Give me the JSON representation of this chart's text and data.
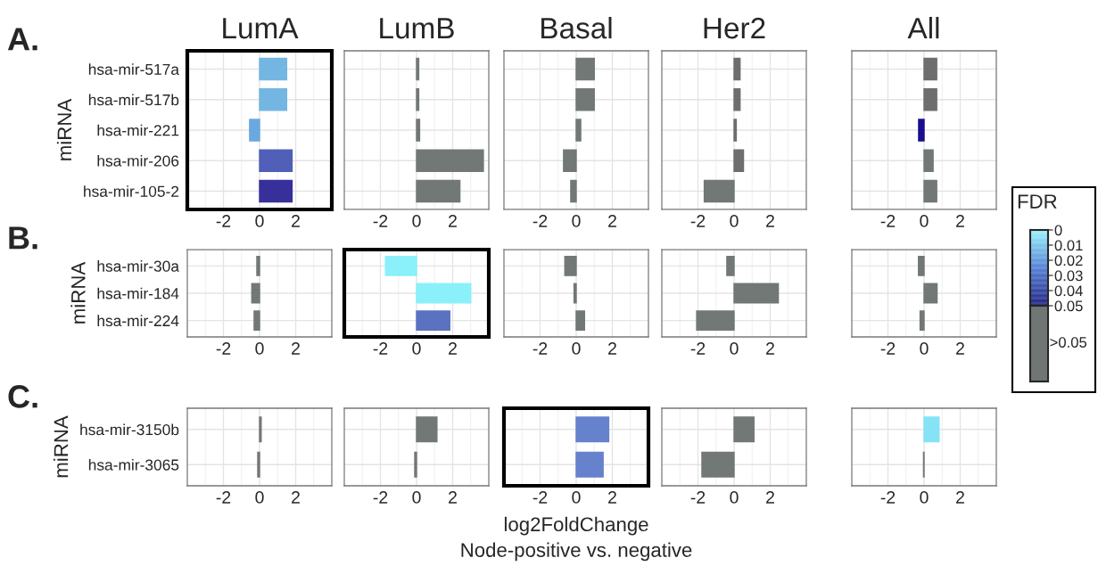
{
  "chart_data": [
    {
      "type": "bar",
      "orientation": "horizontal",
      "title": "LumA",
      "ylabel": "miRNA",
      "annotations": [
        "A.",
        ">0.05"
      ],
      "clabel": "FDR",
      "clim": [
        0,
        0.05
      ],
      "cticks": [
        0,
        0.01,
        0.02,
        0.03,
        0.04,
        0.05
      ],
      "categories": [
        "hsa-mir-517a",
        "hsa-mir-517b",
        "hsa-mir-221",
        "hsa-mir-206",
        "hsa-mir-105-2"
      ],
      "values": [
        1.5,
        1.5,
        -0.55,
        1.8,
        1.8
      ],
      "colors": [
        "#74b6e2",
        "#74b6e2",
        "#6aa8e0",
        "#5060b8",
        "#38309a"
      ],
      "xlim": [
        -4,
        4
      ],
      "xticks": [
        -2,
        0,
        2
      ],
      "grid": true
    },
    {
      "type": "bar",
      "orientation": "horizontal",
      "title": "LumB",
      "tick_labels": "x",
      "categories": [
        null,
        null,
        null,
        null,
        null
      ],
      "values": [
        0.12,
        0.12,
        0.17,
        3.7,
        2.4
      ],
      "colors": [
        "#727876",
        "#727876",
        "#727876",
        "#727876",
        "#727876"
      ],
      "xlim": [
        -4,
        4
      ],
      "xticks": [
        -2,
        0,
        2
      ],
      "grid": true
    },
    {
      "type": "bar",
      "orientation": "horizontal",
      "title": "Basal",
      "tick_labels": "x",
      "categories": [
        null,
        null,
        null,
        null,
        null
      ],
      "values": [
        1.0,
        1.0,
        0.25,
        -0.7,
        -0.3
      ],
      "colors": [
        "#727876",
        "#727876",
        "#727876",
        "#727876",
        "#727876"
      ],
      "xlim": [
        -4,
        4
      ],
      "xticks": [
        -2,
        0,
        2
      ],
      "grid": true
    },
    {
      "type": "bar",
      "orientation": "horizontal",
      "title": "Her2",
      "tick_labels": "x",
      "categories": [
        null,
        null,
        null,
        null,
        null
      ],
      "values": [
        0.33,
        0.33,
        0.12,
        0.52,
        -1.65
      ],
      "colors": [
        "#6e6e6e",
        "#6e6e6e",
        "#6e6e6e",
        "#6e6e6e",
        "#727876"
      ],
      "xlim": [
        -4,
        4
      ],
      "xticks": [
        -2,
        0,
        2
      ],
      "grid": true
    },
    {
      "type": "bar",
      "orientation": "horizontal",
      "title": "All",
      "tick_labels": "x",
      "categories": [
        null,
        null,
        null,
        null,
        null
      ],
      "values": [
        0.7,
        0.7,
        -0.3,
        0.5,
        0.7
      ],
      "colors": [
        "#6e6e6e",
        "#6e6e6e",
        "#1a0d8f",
        "#727876",
        "#727876"
      ],
      "xlim": [
        -4,
        4
      ],
      "xticks": [
        -2,
        0,
        2
      ],
      "grid": true
    },
    {
      "type": "bar",
      "orientation": "horizontal",
      "ylabel": "miRNA",
      "annotations": [
        "B."
      ],
      "categories": [
        "hsa-mir-30a",
        "hsa-mir-184",
        "hsa-mir-224"
      ],
      "values": [
        -0.15,
        -0.43,
        -0.3
      ],
      "colors": [
        "#727876",
        "#727876",
        "#727876"
      ],
      "xlim": [
        -4,
        4
      ],
      "xticks": [
        -2,
        0,
        2
      ],
      "grid": true
    },
    {
      "type": "bar",
      "orientation": "horizontal",
      "tick_labels": "x",
      "categories": [
        null,
        null,
        null
      ],
      "values": [
        -1.72,
        3.0,
        1.84
      ],
      "colors": [
        "#8af0fa",
        "#8af0fa",
        "#5a72c0"
      ],
      "xlim": [
        -4,
        4
      ],
      "xticks": [
        -2,
        0,
        2
      ],
      "grid": true
    },
    {
      "type": "bar",
      "orientation": "horizontal",
      "tick_labels": "x",
      "categories": [
        null,
        null,
        null
      ],
      "values": [
        -0.63,
        -0.12,
        0.46
      ],
      "colors": [
        "#727876",
        "#727876",
        "#727876"
      ],
      "xlim": [
        -4,
        4
      ],
      "xticks": [
        -2,
        0,
        2
      ],
      "grid": true
    },
    {
      "type": "bar",
      "orientation": "horizontal",
      "tick_labels": "x",
      "categories": [
        null,
        null,
        null
      ],
      "values": [
        -0.4,
        2.45,
        -2.07
      ],
      "colors": [
        "#727876",
        "#727876",
        "#727876"
      ],
      "xlim": [
        -4,
        4
      ],
      "xticks": [
        -2,
        0,
        2
      ],
      "grid": true
    },
    {
      "type": "bar",
      "orientation": "horizontal",
      "tick_labels": "x",
      "categories": [
        null,
        null,
        null
      ],
      "values": [
        -0.31,
        0.72,
        -0.22
      ],
      "colors": [
        "#727876",
        "#727876",
        "#727876"
      ],
      "xlim": [
        -4,
        4
      ],
      "xticks": [
        -2,
        0,
        2
      ],
      "grid": true
    },
    {
      "type": "bar",
      "orientation": "horizontal",
      "ylabel": "miRNA",
      "annotations": [
        "C."
      ],
      "categories": [
        "hsa-mir-3150b",
        "hsa-mir-3065"
      ],
      "values": [
        0.09,
        -0.1
      ],
      "colors": [
        "#727876",
        "#727876"
      ],
      "xlim": [
        -4,
        4
      ],
      "xticks": [
        -2,
        0,
        2
      ],
      "grid": true
    },
    {
      "type": "bar",
      "orientation": "horizontal",
      "tick_labels": "x",
      "categories": [
        null,
        null
      ],
      "values": [
        1.13,
        -0.1
      ],
      "colors": [
        "#727876",
        "#727876"
      ],
      "xlim": [
        -4,
        4
      ],
      "xticks": [
        -2,
        0,
        2
      ],
      "grid": true
    },
    {
      "type": "bar",
      "orientation": "horizontal",
      "tick_labels": "x",
      "xlabel": "log2FoldChange\nNode-positive vs. negative",
      "categories": [
        null,
        null
      ],
      "values": [
        1.8,
        1.49
      ],
      "colors": [
        "#6682cc",
        "#6682cc"
      ],
      "xlim": [
        -4,
        4
      ],
      "xticks": [
        -2,
        0,
        2
      ],
      "grid": true
    },
    {
      "type": "bar",
      "orientation": "horizontal",
      "tick_labels": "x",
      "categories": [
        null,
        null
      ],
      "values": [
        1.1,
        -1.78
      ],
      "colors": [
        "#727876",
        "#727876"
      ],
      "xlim": [
        -4,
        4
      ],
      "xticks": [
        -2,
        0,
        2
      ],
      "grid": true
    },
    {
      "type": "bar",
      "orientation": "horizontal",
      "tick_labels": "x",
      "categories": [
        null,
        null
      ],
      "values": [
        0.83,
        -0.03
      ],
      "colors": [
        "#85e3f5",
        "#727876"
      ],
      "xlim": [
        -4,
        4
      ],
      "xticks": [
        -2,
        0,
        2
      ],
      "grid": true
    }
  ]
}
